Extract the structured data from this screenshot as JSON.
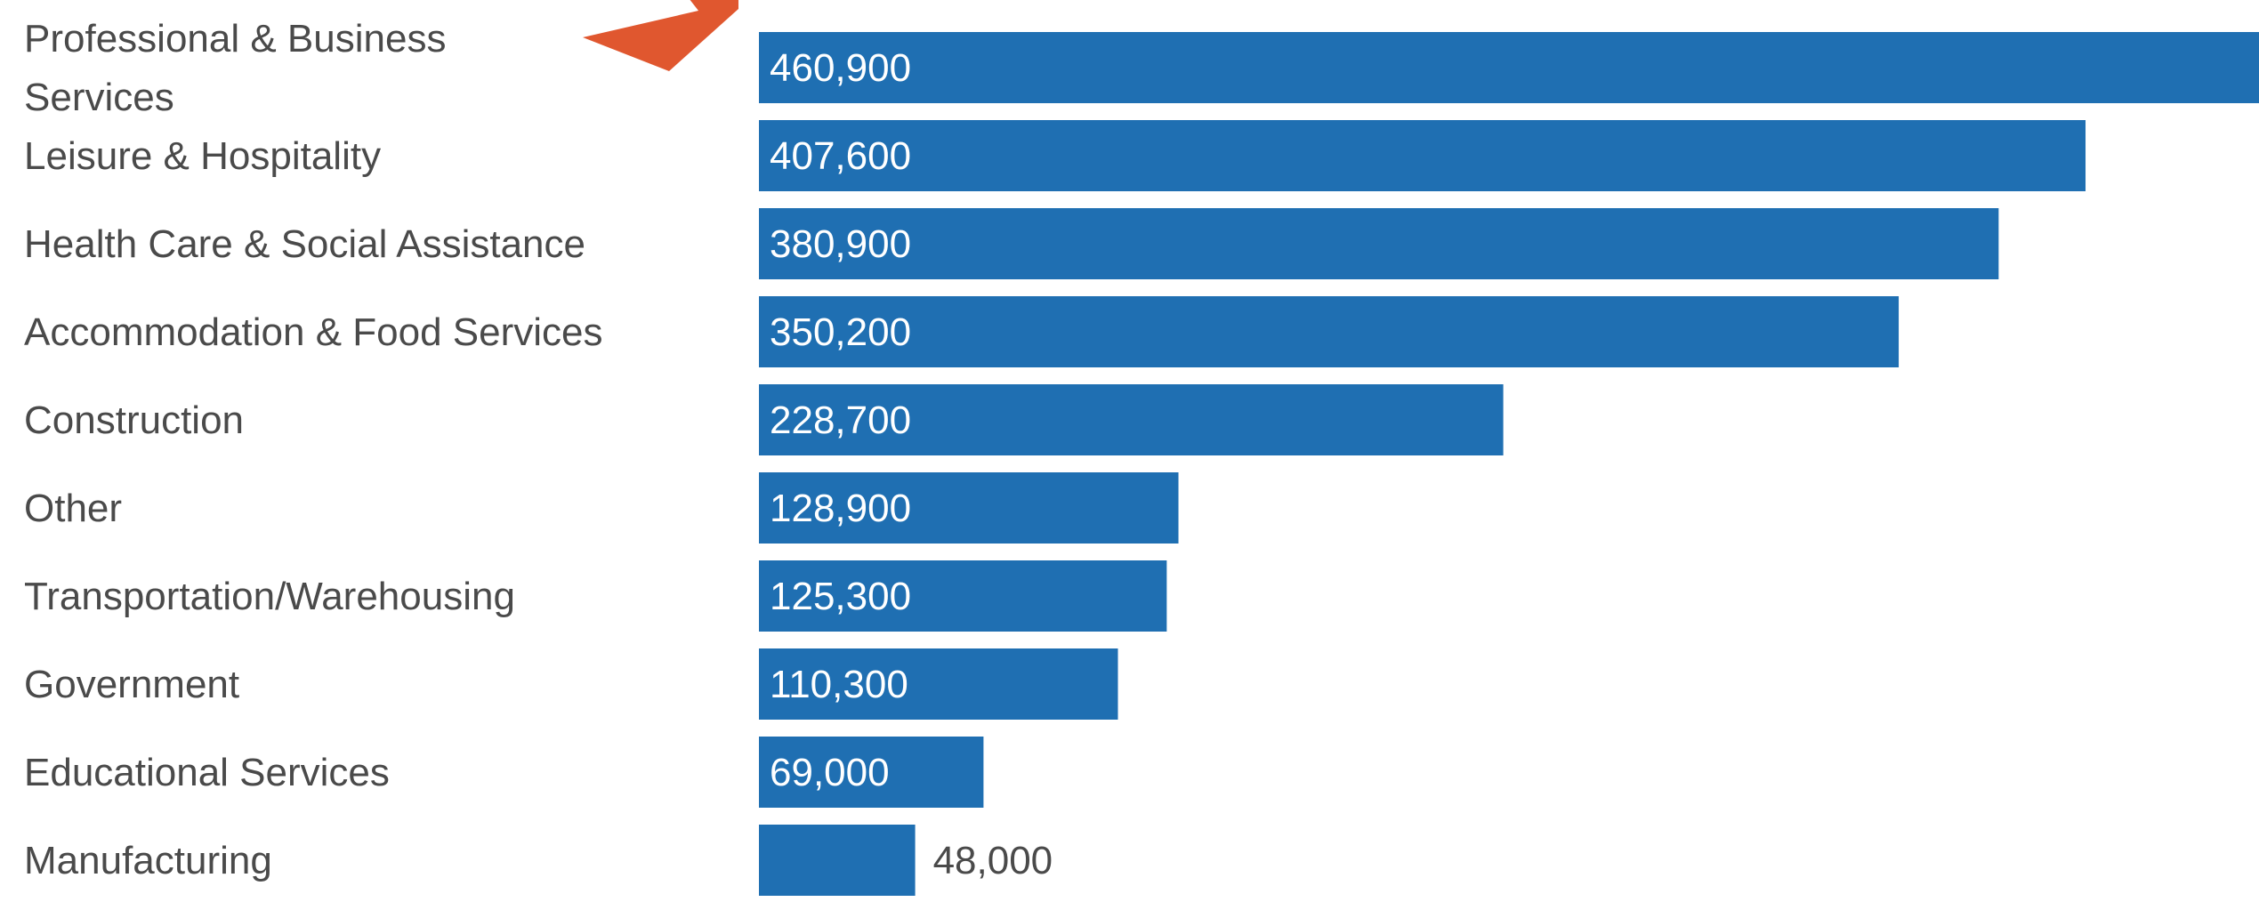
{
  "chart_data": {
    "type": "bar",
    "orientation": "horizontal",
    "categories": [
      "Professional & Business Services",
      "Leisure & Hospitality",
      "Health Care & Social Assistance",
      "Accommodation & Food Services",
      "Construction",
      "Other",
      "Transportation/Warehousing",
      "Government",
      "Educational Services",
      "Manufacturing"
    ],
    "category_lines": [
      [
        "Professional & Business",
        "Services"
      ],
      [
        "Leisure & Hospitality"
      ],
      [
        "Health Care & Social Assistance"
      ],
      [
        "Accommodation & Food Services"
      ],
      [
        "Construction"
      ],
      [
        "Other"
      ],
      [
        "Transportation/Warehousing"
      ],
      [
        "Government"
      ],
      [
        "Educational Services"
      ],
      [
        "Manufacturing"
      ]
    ],
    "values": [
      460900,
      407600,
      380900,
      350200,
      228700,
      128900,
      125300,
      110300,
      69000,
      48000
    ],
    "value_labels": [
      "460,900",
      "407,600",
      "380,900",
      "350,200",
      "228,700",
      "128,900",
      "125,300",
      "110,300",
      "69,000",
      "48,000"
    ],
    "xlim": [
      0,
      460900
    ],
    "grid": false,
    "legend": "none",
    "colors": {
      "bar": "#1f6fb2",
      "label_inside": "#ffffff",
      "label_outside": "#4a4a4a",
      "category_text": "#4a4a4a",
      "annotation_arrow": "#e0572f"
    },
    "annotation": {
      "type": "arrow",
      "points_to": "Professional & Business Services"
    }
  }
}
